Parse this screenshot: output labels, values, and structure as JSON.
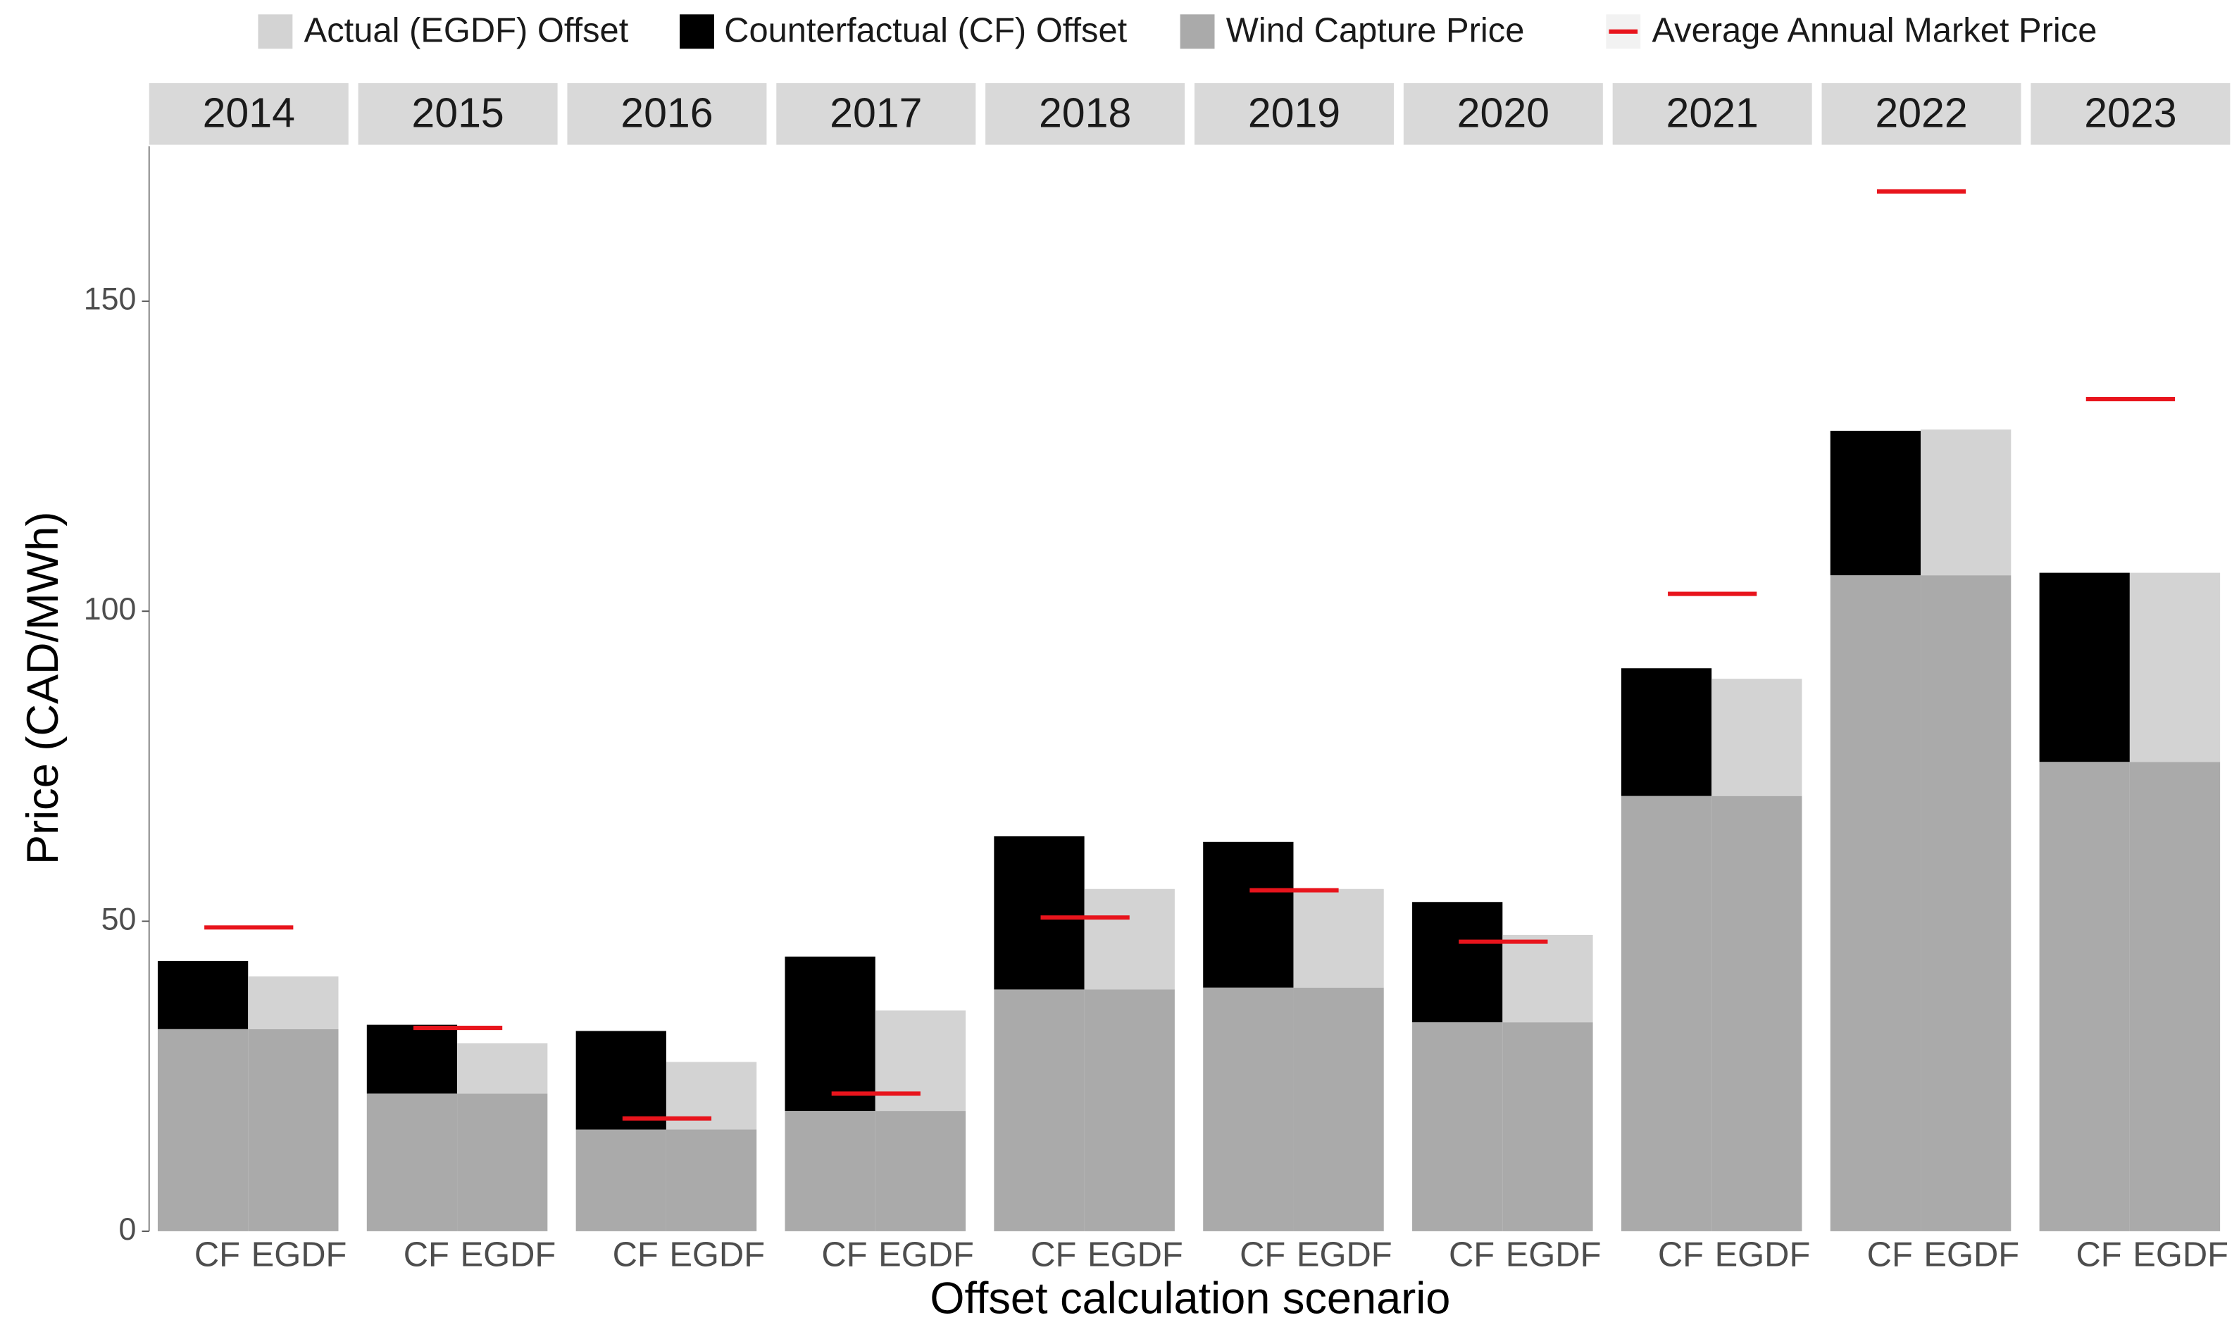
{
  "chart_data": {
    "type": "bar",
    "x_label": "Offset calculation scenario",
    "y_label": "Price (CAD/MWh)",
    "facets": [
      "2014",
      "2015",
      "2016",
      "2017",
      "2018",
      "2019",
      "2020",
      "2021",
      "2022",
      "2023"
    ],
    "bar_labels": [
      "CF",
      "EGDF"
    ],
    "ylim": [
      0,
      175
    ],
    "yticks": [
      0,
      50,
      100,
      150
    ],
    "legend_position": "top",
    "series": [
      {
        "name": "Actual (EGDF) Offset",
        "color": "#d3d3d3",
        "values": [
          8.5,
          8.1,
          10.9,
          16.2,
          16.2,
          15.9,
          14.1,
          18.9,
          23.5,
          30.5
        ]
      },
      {
        "name": "Counterfactual (CF) Offset",
        "color": "#000000",
        "values": [
          11,
          11.1,
          15.9,
          24.9,
          24.7,
          23.5,
          19.4,
          20.6,
          23.3,
          30.5
        ]
      },
      {
        "name": "Wind Capture Price",
        "color": "#aaaaaa",
        "values": [
          32.6,
          22.2,
          16.4,
          19.4,
          39,
          39.3,
          33.7,
          70.2,
          105.8,
          75.7
        ]
      },
      {
        "name": "Average Annual Market Price",
        "color": "#e8141c",
        "values": [
          49,
          32.8,
          18.2,
          22.2,
          50.6,
          55,
          46.7,
          102.8,
          167.7,
          134.2
        ]
      }
    ]
  }
}
